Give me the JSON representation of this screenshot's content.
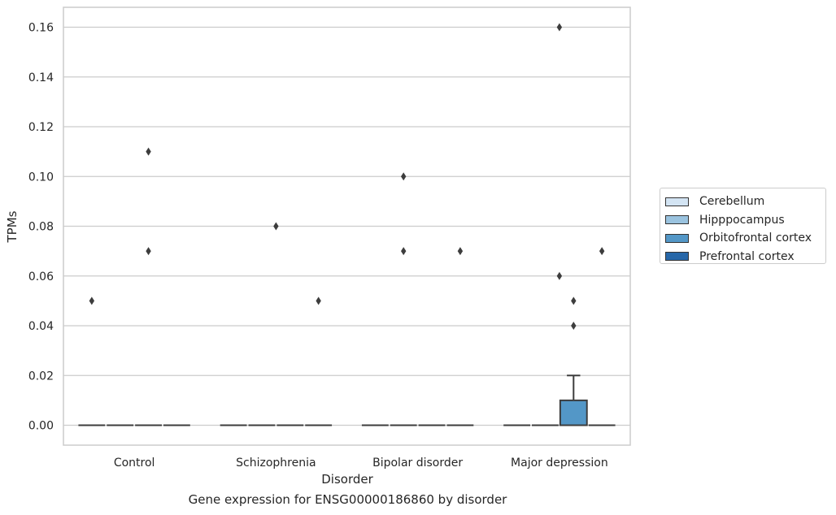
{
  "chart_data": {
    "type": "box",
    "xlabel": "Disorder",
    "ylabel": "TPMs",
    "caption": "Gene expression for ENSG00000186860 by disorder",
    "categories": [
      "Control",
      "Schizophrenia",
      "Bipolar disorder",
      "Major depression"
    ],
    "ylim": [
      -0.008,
      0.168
    ],
    "yticks": [
      "0.00",
      "0.02",
      "0.04",
      "0.06",
      "0.08",
      "0.10",
      "0.12",
      "0.14",
      "0.16"
    ],
    "grid": true,
    "legend_position": "right",
    "series": [
      {
        "name": "Cerebellum",
        "color": "#d3e4f3",
        "boxes": [
          {
            "q1": 0,
            "median": 0,
            "q3": 0,
            "whisker_low": 0,
            "whisker_high": 0,
            "outliers": [
              0.05
            ]
          },
          {
            "q1": 0,
            "median": 0,
            "q3": 0,
            "whisker_low": 0,
            "whisker_high": 0,
            "outliers": []
          },
          {
            "q1": 0,
            "median": 0,
            "q3": 0,
            "whisker_low": 0,
            "whisker_high": 0,
            "outliers": []
          },
          {
            "q1": 0,
            "median": 0,
            "q3": 0,
            "whisker_low": 0,
            "whisker_high": 0,
            "outliers": []
          }
        ]
      },
      {
        "name": "Hipppocampus",
        "color": "#9ac3df",
        "boxes": [
          {
            "q1": 0,
            "median": 0,
            "q3": 0,
            "whisker_low": 0,
            "whisker_high": 0,
            "outliers": []
          },
          {
            "q1": 0,
            "median": 0,
            "q3": 0,
            "whisker_low": 0,
            "whisker_high": 0,
            "outliers": []
          },
          {
            "q1": 0,
            "median": 0,
            "q3": 0,
            "whisker_low": 0,
            "whisker_high": 0,
            "outliers": [
              0.1,
              0.07
            ]
          },
          {
            "q1": 0,
            "median": 0,
            "q3": 0,
            "whisker_low": 0,
            "whisker_high": 0,
            "outliers": []
          }
        ]
      },
      {
        "name": "Orbitofrontal cortex",
        "color": "#5397c7",
        "boxes": [
          {
            "q1": 0,
            "median": 0,
            "q3": 0,
            "whisker_low": 0,
            "whisker_high": 0,
            "outliers": [
              0.11,
              0.07
            ]
          },
          {
            "q1": 0,
            "median": 0,
            "q3": 0,
            "whisker_low": 0,
            "whisker_high": 0,
            "outliers": []
          },
          {
            "q1": 0,
            "median": 0,
            "q3": 0,
            "whisker_low": 0,
            "whisker_high": 0,
            "outliers": []
          },
          {
            "q1": 0,
            "median": 0,
            "q3": 0.01,
            "whisker_low": 0,
            "whisker_high": 0.02,
            "outliers": [
              0.05,
              0.04
            ]
          }
        ]
      },
      {
        "name": "Prefrontal cortex",
        "color": "#2767a8",
        "boxes": [
          {
            "q1": 0,
            "median": 0,
            "q3": 0,
            "whisker_low": 0,
            "whisker_high": 0,
            "outliers": []
          },
          {
            "q1": 0,
            "median": 0,
            "q3": 0,
            "whisker_low": 0,
            "whisker_high": 0,
            "outliers": [
              0.05
            ]
          },
          {
            "q1": 0,
            "median": 0,
            "q3": 0,
            "whisker_low": 0,
            "whisker_high": 0,
            "outliers": [
              0.07
            ]
          },
          {
            "q1": 0,
            "median": 0,
            "q3": 0,
            "whisker_low": 0,
            "whisker_high": 0,
            "outliers": [
              0.07
            ]
          }
        ]
      }
    ],
    "extra_outliers": [
      {
        "category": "Schizophrenia",
        "series_index": 1.5,
        "value": 0.08
      },
      {
        "category": "Major depression",
        "series_index": 1.5,
        "value": 0.16
      },
      {
        "category": "Major depression",
        "series_index": 1.5,
        "value": 0.06
      }
    ]
  }
}
